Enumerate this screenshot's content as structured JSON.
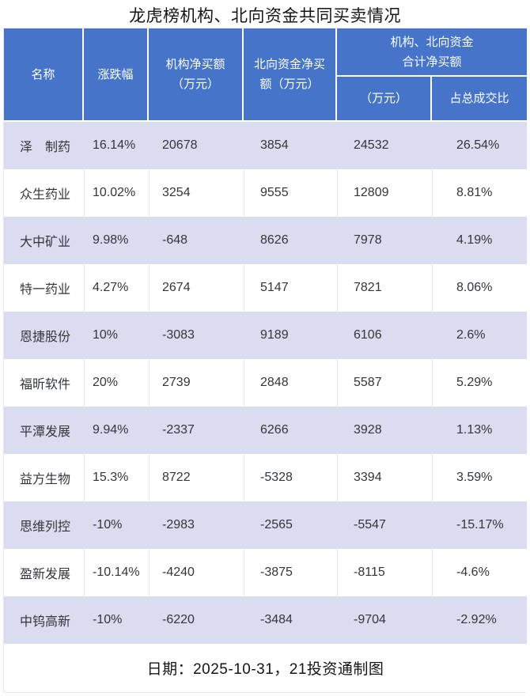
{
  "title": "龙虎榜机构、北向资金共同买卖情况",
  "colors": {
    "header_bg": "#4674C8",
    "header_text": "#ffffff",
    "row_alt_bg": "#DADDF0",
    "grid_line": "#E4E6F1",
    "body_text": "#333639"
  },
  "table_header": {
    "name": "名称",
    "change": "涨跌幅",
    "inst_net": "机构净买额\n（万元）",
    "north_net": "北向资金净买\n额（万元）",
    "combined_group": "机构、北向资金\n合计净买额",
    "combined_amount": "（万元）",
    "combined_ratio": "占总成交比"
  },
  "footer": {
    "text": "日期：2025-10-31，21投资通制图"
  },
  "chart_data": {
    "type": "table",
    "title": "龙虎榜机构、北向资金共同买卖情况",
    "columns": [
      "名称",
      "涨跌幅",
      "机构净买额（万元）",
      "北向资金净买额（万元）",
      "机构、北向资金合计净买额（万元）",
      "机构、北向资金合计净买额占总成交比"
    ],
    "rows": [
      [
        "泽　制药",
        "16.14%",
        "20678",
        "3854",
        "24532",
        "26.54%"
      ],
      [
        "众生药业",
        "10.02%",
        "3254",
        "9555",
        "12809",
        "8.81%"
      ],
      [
        "大中矿业",
        "9.98%",
        "-648",
        "8626",
        "7978",
        "4.19%"
      ],
      [
        "特一药业",
        "4.27%",
        "2674",
        "5147",
        "7821",
        "8.06%"
      ],
      [
        "恩捷股份",
        "10%",
        "-3083",
        "9189",
        "6106",
        "2.6%"
      ],
      [
        "福昕软件",
        "20%",
        "2739",
        "2848",
        "5587",
        "5.29%"
      ],
      [
        "平潭发展",
        "9.94%",
        "-2337",
        "6266",
        "3928",
        "1.13%"
      ],
      [
        "益方生物",
        "15.3%",
        "8722",
        "-5328",
        "3394",
        "3.59%"
      ],
      [
        "思维列控",
        "-10%",
        "-2983",
        "-2565",
        "-5547",
        "-15.17%"
      ],
      [
        "盈新发展",
        "-10.14%",
        "-4240",
        "-3875",
        "-8115",
        "-4.6%"
      ],
      [
        "中钨高新",
        "-10%",
        "-6220",
        "-3484",
        "-9704",
        "-2.92%"
      ]
    ],
    "source_note": "日期：2025-10-31，21投资通制图",
    "layout": {
      "striped_rows": "odd rows highlighted lavender starting with first data row",
      "header_rows": 2,
      "grid": "light vertical separators on white rows, white separators in header"
    }
  }
}
